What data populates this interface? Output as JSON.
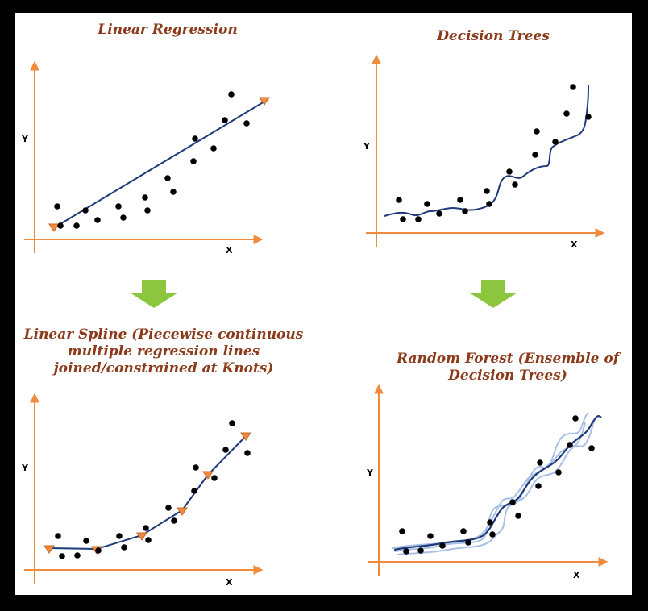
{
  "panels": {
    "linear_regression": {
      "title": "Linear Regression",
      "x_label": "X",
      "y_label": "Y"
    },
    "decision_trees": {
      "title": "Decision Trees",
      "x_label": "X",
      "y_label": "Y"
    },
    "linear_spline": {
      "title_lines": [
        "Linear Spline (Piecewise continuous",
        "multiple regression lines",
        "joined/constrained at Knots)"
      ],
      "x_label": "X",
      "y_label": "Y"
    },
    "random_forest": {
      "title_lines": [
        "Random Forest (Ensemble of",
        "Decision Trees)"
      ],
      "x_label": "X",
      "y_label": "Y"
    }
  },
  "arrows": [
    "down-arrow",
    "down-arrow"
  ],
  "colors": {
    "title": "#8b3a1a",
    "axis": "#f08a3c",
    "line": "#1f3a7a",
    "secondary_line": "#a9c0e6",
    "knot": "#f08a3c",
    "arrow": "#8cc63f",
    "point": "#000000"
  }
}
